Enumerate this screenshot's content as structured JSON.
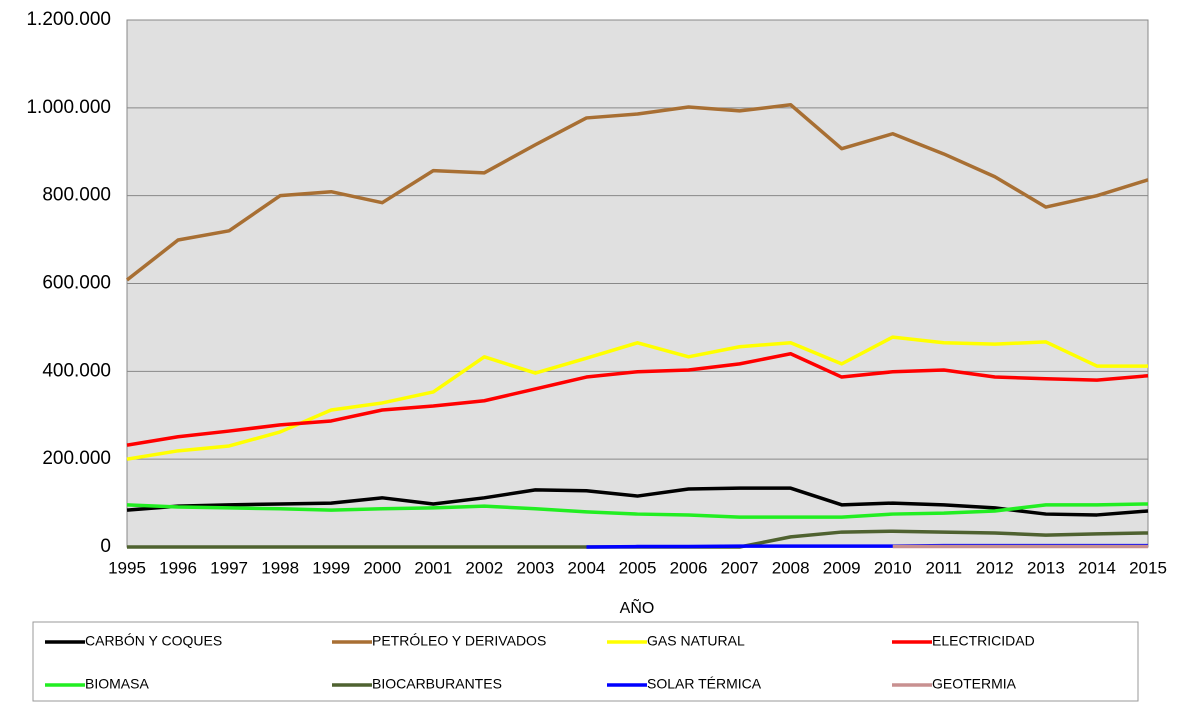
{
  "chart_data": {
    "type": "line",
    "xlabel": "AÑO",
    "categories": [
      "1995",
      "1996",
      "1997",
      "1998",
      "1999",
      "2000",
      "2001",
      "2002",
      "2003",
      "2004",
      "2005",
      "2006",
      "2007",
      "2008",
      "2009",
      "2010",
      "2011",
      "2012",
      "2013",
      "2014",
      "2015"
    ],
    "ylim": [
      0,
      1200000
    ],
    "yticks": [
      0,
      {
        "value": 200000,
        "label": "200.000"
      },
      {
        "value": 400000,
        "label": "400.000"
      },
      {
        "value": 600000,
        "label": "600.000"
      },
      {
        "value": 800000,
        "label": "800.000"
      },
      {
        "value": 1000000,
        "label": "1.000.000"
      },
      {
        "value": 1200000,
        "label": "1.200.000"
      }
    ],
    "grid": true,
    "legend": "bottom",
    "series": [
      {
        "name": "CARBÓN Y COQUES",
        "color": "#000000",
        "values": [
          84000,
          93000,
          96000,
          98000,
          100000,
          112000,
          98000,
          112000,
          130000,
          128000,
          116000,
          132000,
          134000,
          134000,
          96000,
          100000,
          96000,
          89000,
          75000,
          73000,
          82000
        ]
      },
      {
        "name": "PETRÓLEO Y DERIVADOS",
        "color": "#a86f33",
        "values": [
          608000,
          699000,
          720000,
          800000,
          809000,
          784000,
          857000,
          852000,
          916000,
          977000,
          986000,
          1002000,
          993000,
          1007000,
          907000,
          941000,
          895000,
          843000,
          774000,
          800000,
          836000
        ]
      },
      {
        "name": "GAS NATURAL",
        "color": "#ffff00",
        "values": [
          200000,
          219000,
          230000,
          262000,
          312000,
          328000,
          353000,
          433000,
          396000,
          430000,
          465000,
          433000,
          456000,
          465000,
          417000,
          478000,
          465000,
          462000,
          467000,
          412000,
          412000
        ]
      },
      {
        "name": "ELECTRICIDAD",
        "color": "#ff0000",
        "values": [
          232000,
          251000,
          264000,
          278000,
          287000,
          312000,
          321000,
          333000,
          360000,
          387000,
          399000,
          403000,
          417000,
          440000,
          387000,
          399000,
          403000,
          387000,
          383000,
          380000,
          390000
        ]
      },
      {
        "name": "BIOMASA",
        "color": "#22ee22",
        "values": [
          96000,
          91000,
          89000,
          87000,
          84000,
          87000,
          89000,
          93000,
          87000,
          80000,
          75000,
          73000,
          68000,
          68000,
          68000,
          75000,
          77000,
          82000,
          96000,
          96000,
          98000
        ]
      },
      {
        "name": "BIOCARBURANTES",
        "color": "#4f6230",
        "values": [
          0,
          0,
          0,
          0,
          0,
          0,
          0,
          0,
          0,
          0,
          0,
          0,
          0,
          23000,
          34000,
          36000,
          34000,
          32000,
          27000,
          30000,
          32000
        ]
      },
      {
        "name": "SOLAR TÉRMICA",
        "color": "#0000ff",
        "values": [
          null,
          null,
          null,
          null,
          null,
          null,
          null,
          null,
          null,
          0,
          1000,
          1000,
          2000,
          2000,
          2000,
          2000,
          3000,
          3000,
          3000,
          3000,
          3000
        ]
      },
      {
        "name": "GEOTERMIA",
        "color": "#c89090",
        "values": [
          null,
          null,
          null,
          null,
          null,
          null,
          null,
          null,
          null,
          null,
          null,
          null,
          null,
          null,
          null,
          1000,
          1000,
          1000,
          1000,
          1000,
          1000
        ]
      }
    ]
  }
}
